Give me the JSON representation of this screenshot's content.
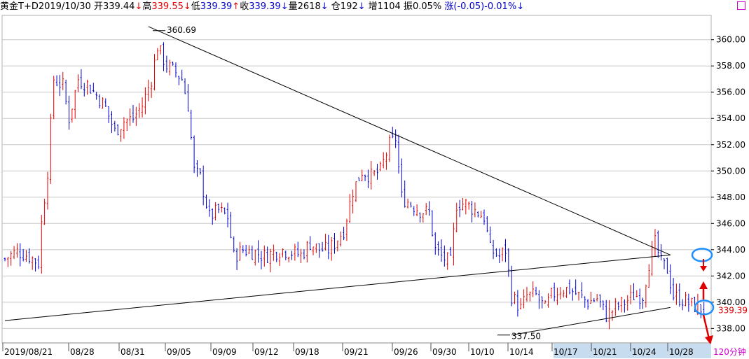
{
  "info_bar": {
    "name": "黄金T+D",
    "date": "2019/10/30",
    "open": {
      "label": "开",
      "value": "339.44",
      "arrow": "↓"
    },
    "high": {
      "label": "高",
      "value": "339.55",
      "arrow": "↓"
    },
    "low": {
      "label": "低",
      "value": "339.39",
      "arrow": "↑"
    },
    "close": {
      "label": "收",
      "value": "339.39",
      "arrow": "↓"
    },
    "volume": {
      "label": "量",
      "value": "2618",
      "arrow": "↓"
    },
    "position": {
      "label": "仓",
      "value": "192",
      "arrow": "↓"
    },
    "increase": {
      "label": "增",
      "value": "1104"
    },
    "amplitude": {
      "label": "振",
      "value": "0.05%"
    },
    "change": {
      "label": "涨",
      "value": "(-0.05)-0.01%",
      "arrow": "↓"
    }
  },
  "colors": {
    "up": "#e00000",
    "down": "#0000cc",
    "axis_text": "#000000",
    "grid": "#c8c8c8",
    "highlight": "#1e90ff",
    "label_price": "#e00000",
    "timeframe": "#cc00cc"
  },
  "timeframe_label": "120分钟",
  "chart_data": {
    "type": "candlestick",
    "ylim": [
      337,
      361
    ],
    "y_ticks": [
      "360.00",
      "358.00",
      "356.00",
      "354.00",
      "352.00",
      "350.00",
      "348.00",
      "346.00",
      "344.00",
      "342.00",
      "340.00",
      "338.00"
    ],
    "x_labels": [
      "2019/08/21",
      "08/28",
      "08/31",
      "09/05",
      "09/09",
      "09/12",
      "09/18",
      "09/21",
      "09/26",
      "09/30",
      "10/10",
      "10/14",
      "10/17",
      "10/21",
      "10/24",
      "10/28"
    ],
    "current_price": "339.39",
    "annotations": [
      {
        "text": "360.69",
        "value": 360.69,
        "kind": "high"
      },
      {
        "text": "337.50",
        "value": 337.5,
        "kind": "low"
      }
    ],
    "trendlines": [
      {
        "name": "upper-resistance",
        "from": {
          "bar": 47,
          "price": 361.0
        },
        "to": {
          "bar": 218,
          "price": 343.6
        }
      },
      {
        "name": "lower-support",
        "from": {
          "bar": 0,
          "price": 338.6
        },
        "to": {
          "bar": 218,
          "price": 343.6
        }
      },
      {
        "name": "wedge-support",
        "from": {
          "bar": 166,
          "price": 337.5
        },
        "to": {
          "bar": 218,
          "price": 339.6
        }
      }
    ],
    "anchors": [
      [
        0,
        343.3
      ],
      [
        4,
        343.9
      ],
      [
        8,
        343.5
      ],
      [
        11,
        343.0
      ],
      [
        12,
        346.0
      ],
      [
        14,
        350.0
      ],
      [
        16,
        357.0
      ],
      [
        19,
        356.5
      ],
      [
        21,
        354.0
      ],
      [
        24,
        357.0
      ],
      [
        27,
        356.6
      ],
      [
        31,
        355.5
      ],
      [
        33,
        354.8
      ],
      [
        36,
        353.0
      ],
      [
        39,
        353.8
      ],
      [
        42,
        354.0
      ],
      [
        45,
        355.0
      ],
      [
        48,
        357.0
      ],
      [
        50,
        359.5
      ],
      [
        53,
        358.0
      ],
      [
        56,
        357.5
      ],
      [
        58,
        357.0
      ],
      [
        60,
        355.0
      ],
      [
        62,
        350.0
      ],
      [
        64,
        349.5
      ],
      [
        67,
        346.5
      ],
      [
        70,
        347.0
      ],
      [
        73,
        346.5
      ],
      [
        75,
        343.5
      ],
      [
        78,
        344.0
      ],
      [
        82,
        343.8
      ],
      [
        85,
        343.5
      ],
      [
        88,
        343.8
      ],
      [
        91,
        344.0
      ],
      [
        94,
        343.8
      ],
      [
        97,
        343.6
      ],
      [
        100,
        344.5
      ],
      [
        103,
        344.0
      ],
      [
        106,
        344.0
      ],
      [
        108,
        344.5
      ],
      [
        111,
        345.5
      ],
      [
        114,
        348.5
      ],
      [
        117,
        350.0
      ],
      [
        120,
        349.6
      ],
      [
        123,
        350.0
      ],
      [
        126,
        352.0
      ],
      [
        128,
        352.5
      ],
      [
        130,
        348.0
      ],
      [
        133,
        347.5
      ],
      [
        136,
        347.0
      ],
      [
        139,
        346.8
      ],
      [
        141,
        344.0
      ],
      [
        143,
        343.5
      ],
      [
        146,
        343.0
      ],
      [
        148,
        347.5
      ],
      [
        151,
        347.5
      ],
      [
        154,
        347.0
      ],
      [
        157,
        346.5
      ],
      [
        159,
        344.0
      ],
      [
        162,
        343.5
      ],
      [
        164,
        344.0
      ],
      [
        166,
        340.5
      ],
      [
        169,
        339.5
      ],
      [
        171,
        340.5
      ],
      [
        174,
        340.5
      ],
      [
        177,
        339.5
      ],
      [
        179,
        340.5
      ],
      [
        182,
        341.0
      ],
      [
        185,
        341.0
      ],
      [
        188,
        340.5
      ],
      [
        191,
        340.0
      ],
      [
        194,
        340.3
      ],
      [
        197,
        339.0
      ],
      [
        200,
        339.6
      ],
      [
        203,
        340.0
      ],
      [
        206,
        340.5
      ],
      [
        209,
        340.5
      ],
      [
        211,
        343.0
      ],
      [
        213,
        344.5
      ],
      [
        215,
        343.0
      ],
      [
        217,
        342.5
      ],
      [
        219,
        340.5
      ],
      [
        222,
        340.2
      ],
      [
        225,
        339.8
      ],
      [
        227,
        339.6
      ],
      [
        229,
        339.4
      ]
    ]
  }
}
